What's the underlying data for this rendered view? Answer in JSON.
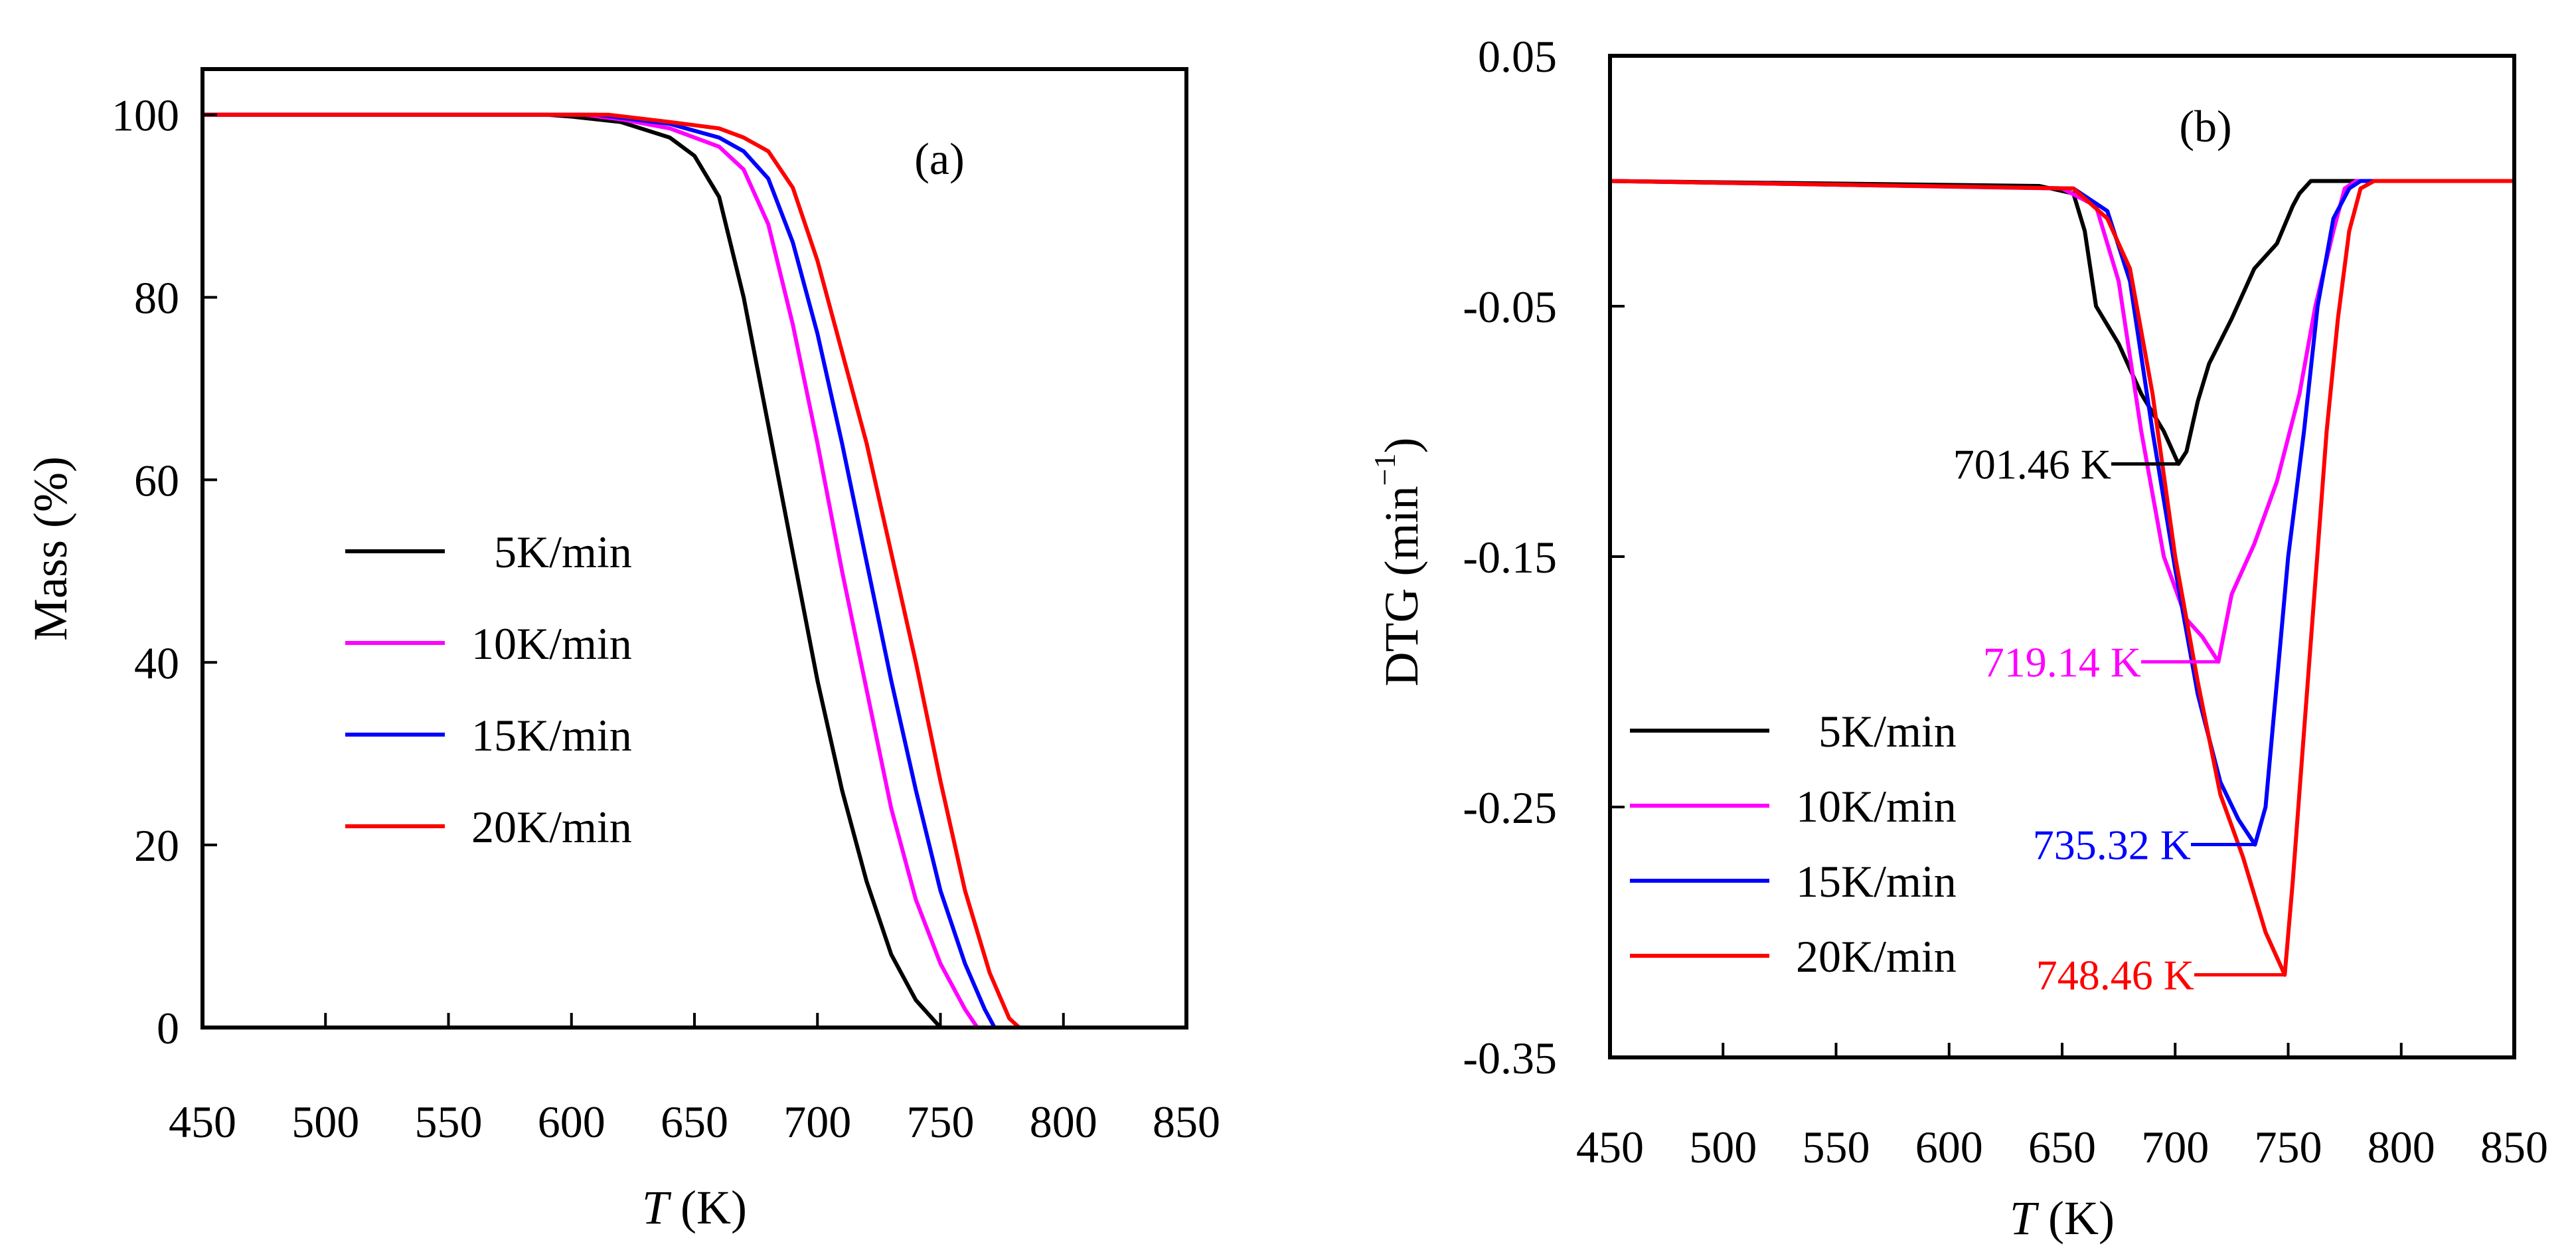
{
  "chart_data": [
    {
      "id": "a",
      "type": "line",
      "panel_label": "(a)",
      "xlabel": {
        "italic": "T",
        "rest": " (K)"
      },
      "ylabel": "Mass (%)",
      "xlim": [
        450,
        850
      ],
      "ylim": [
        0,
        105
      ],
      "x_ticks": [
        450,
        500,
        550,
        600,
        650,
        700,
        750,
        800,
        850
      ],
      "y_ticks": [
        0,
        20,
        40,
        60,
        80,
        100
      ],
      "legend_position": "center-left",
      "series": [
        {
          "name": "5K/min",
          "color": "#000000",
          "points": [
            [
              450,
              100
            ],
            [
              590,
              100
            ],
            [
              600,
              99.8
            ],
            [
              620,
              99.2
            ],
            [
              640,
              97.5
            ],
            [
              650,
              95.5
            ],
            [
              660,
              91
            ],
            [
              670,
              80
            ],
            [
              680,
              66
            ],
            [
              690,
              52
            ],
            [
              700,
              38
            ],
            [
              710,
              26
            ],
            [
              720,
              16
            ],
            [
              730,
              8
            ],
            [
              740,
              3
            ],
            [
              750,
              0
            ],
            [
              850,
              0
            ]
          ]
        },
        {
          "name": "10K/min",
          "color": "#FF00FF",
          "points": [
            [
              450,
              100
            ],
            [
              605,
              100
            ],
            [
              620,
              99.5
            ],
            [
              640,
              98.5
            ],
            [
              660,
              96.5
            ],
            [
              670,
              94
            ],
            [
              680,
              88
            ],
            [
              690,
              77
            ],
            [
              700,
              64
            ],
            [
              710,
              50
            ],
            [
              720,
              37
            ],
            [
              730,
              24
            ],
            [
              740,
              14
            ],
            [
              750,
              7
            ],
            [
              760,
              2
            ],
            [
              765,
              0
            ],
            [
              850,
              0
            ]
          ]
        },
        {
          "name": "15K/min",
          "color": "#0000FF",
          "points": [
            [
              450,
              100
            ],
            [
              610,
              100
            ],
            [
              640,
              99
            ],
            [
              660,
              97.5
            ],
            [
              670,
              96
            ],
            [
              680,
              93
            ],
            [
              690,
              86
            ],
            [
              700,
              76
            ],
            [
              710,
              64
            ],
            [
              720,
              51
            ],
            [
              730,
              38
            ],
            [
              740,
              26
            ],
            [
              750,
              15
            ],
            [
              760,
              7
            ],
            [
              768,
              2
            ],
            [
              772,
              0
            ],
            [
              850,
              0
            ]
          ]
        },
        {
          "name": "20K/min",
          "color": "#FF0000",
          "points": [
            [
              450,
              100
            ],
            [
              615,
              100
            ],
            [
              640,
              99.2
            ],
            [
              660,
              98.5
            ],
            [
              670,
              97.5
            ],
            [
              680,
              96
            ],
            [
              690,
              92
            ],
            [
              700,
              84
            ],
            [
              710,
              74
            ],
            [
              720,
              64
            ],
            [
              730,
              52
            ],
            [
              740,
              40
            ],
            [
              750,
              27
            ],
            [
              760,
              15
            ],
            [
              770,
              6
            ],
            [
              778,
              1
            ],
            [
              782,
              0
            ],
            [
              850,
              0
            ]
          ]
        }
      ]
    },
    {
      "id": "b",
      "type": "line",
      "panel_label": "(b)",
      "xlabel": {
        "italic": "T",
        "rest": " (K)"
      },
      "ylabel": {
        "main": "DTG (min",
        "sup": "−1",
        "close": ")"
      },
      "xlim": [
        450,
        850
      ],
      "ylim": [
        -0.35,
        0.05
      ],
      "x_ticks": [
        450,
        500,
        550,
        600,
        650,
        700,
        750,
        800,
        850
      ],
      "y_ticks": [
        0.05,
        -0.05,
        -0.15,
        -0.25,
        -0.35
      ],
      "y_tick_labels": [
        "0.05",
        "-0.05",
        "-0.15",
        "-0.25",
        "-0.35"
      ],
      "legend_position": "lower-left",
      "series": [
        {
          "name": "5K/min",
          "color": "#000000",
          "points": [
            [
              450,
              0
            ],
            [
              640,
              -0.002
            ],
            [
              655,
              -0.005
            ],
            [
              660,
              -0.02
            ],
            [
              665,
              -0.05
            ],
            [
              675,
              -0.065
            ],
            [
              685,
              -0.085
            ],
            [
              695,
              -0.1
            ],
            [
              701.46,
              -0.113
            ],
            [
              705,
              -0.108
            ],
            [
              710,
              -0.088
            ],
            [
              715,
              -0.073
            ],
            [
              725,
              -0.055
            ],
            [
              735,
              -0.035
            ],
            [
              745,
              -0.025
            ],
            [
              752,
              -0.01
            ],
            [
              755,
              -0.005
            ],
            [
              760,
              0
            ],
            [
              850,
              0
            ]
          ]
        },
        {
          "name": "10K/min",
          "color": "#FF00FF",
          "points": [
            [
              450,
              0
            ],
            [
              650,
              -0.003
            ],
            [
              665,
              -0.01
            ],
            [
              675,
              -0.04
            ],
            [
              685,
              -0.1
            ],
            [
              695,
              -0.15
            ],
            [
              705,
              -0.175
            ],
            [
              712,
              -0.182
            ],
            [
              719.14,
              -0.192
            ],
            [
              725,
              -0.165
            ],
            [
              735,
              -0.145
            ],
            [
              745,
              -0.12
            ],
            [
              755,
              -0.085
            ],
            [
              762,
              -0.05
            ],
            [
              770,
              -0.02
            ],
            [
              775,
              -0.003
            ],
            [
              780,
              0
            ],
            [
              850,
              0
            ]
          ]
        },
        {
          "name": "15K/min",
          "color": "#0000FF",
          "points": [
            [
              450,
              0
            ],
            [
              655,
              -0.003
            ],
            [
              670,
              -0.012
            ],
            [
              680,
              -0.04
            ],
            [
              690,
              -0.1
            ],
            [
              700,
              -0.155
            ],
            [
              710,
              -0.205
            ],
            [
              720,
              -0.24
            ],
            [
              728,
              -0.255
            ],
            [
              735.32,
              -0.265
            ],
            [
              740,
              -0.25
            ],
            [
              745,
              -0.2
            ],
            [
              750,
              -0.15
            ],
            [
              757,
              -0.1
            ],
            [
              763,
              -0.05
            ],
            [
              770,
              -0.015
            ],
            [
              777,
              -0.003
            ],
            [
              782,
              0
            ],
            [
              850,
              0
            ]
          ]
        },
        {
          "name": "20K/min",
          "color": "#FF0000",
          "points": [
            [
              450,
              0
            ],
            [
              655,
              -0.003
            ],
            [
              670,
              -0.015
            ],
            [
              680,
              -0.035
            ],
            [
              690,
              -0.085
            ],
            [
              700,
              -0.15
            ],
            [
              710,
              -0.2
            ],
            [
              720,
              -0.245
            ],
            [
              730,
              -0.27
            ],
            [
              740,
              -0.3
            ],
            [
              748.46,
              -0.317
            ],
            [
              752,
              -0.28
            ],
            [
              757,
              -0.22
            ],
            [
              762,
              -0.16
            ],
            [
              767,
              -0.1
            ],
            [
              772,
              -0.055
            ],
            [
              777,
              -0.02
            ],
            [
              782,
              -0.003
            ],
            [
              788,
              0
            ],
            [
              850,
              0
            ]
          ]
        }
      ],
      "annotations": [
        {
          "text": "701.46 K",
          "color": "#000000",
          "x": 701.46,
          "y": -0.113
        },
        {
          "text": "719.14 K",
          "color": "#FF00FF",
          "x": 719.14,
          "y": -0.192
        },
        {
          "text": "735.32 K",
          "color": "#0000FF",
          "x": 735.32,
          "y": -0.265
        },
        {
          "text": "748.46 K",
          "color": "#FF0000",
          "x": 748.46,
          "y": -0.317
        }
      ]
    }
  ]
}
